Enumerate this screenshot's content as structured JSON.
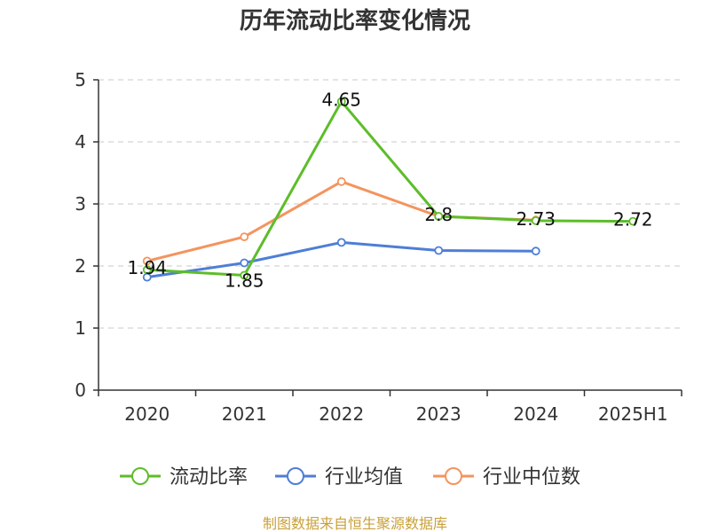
{
  "chart_data": {
    "type": "line",
    "title": "历年流动比率变化情况",
    "categories": [
      "2020",
      "2021",
      "2022",
      "2023",
      "2024",
      "2025H1"
    ],
    "y_ticks": [
      "0",
      "1",
      "2",
      "3",
      "4",
      "5"
    ],
    "ylim": [
      0,
      5
    ],
    "grid": true,
    "legend_position": "bottom",
    "series": [
      {
        "name": "流动比率",
        "color": "#5dbd2a",
        "values": [
          1.94,
          1.85,
          4.65,
          2.8,
          2.73,
          2.72
        ],
        "labels": [
          "1.94",
          "1.85",
          "4.65",
          "2.8",
          "2.73",
          "2.72"
        ]
      },
      {
        "name": "行业均值",
        "color": "#4e7ed6",
        "values": [
          1.82,
          2.05,
          2.38,
          2.25,
          2.24,
          null
        ]
      },
      {
        "name": "行业中位数",
        "color": "#f4945e",
        "values": [
          2.08,
          2.47,
          3.36,
          2.8,
          2.74,
          null
        ]
      }
    ]
  },
  "source_text": "制图数据来自恒生聚源数据库",
  "source_color": "#c9a13b"
}
